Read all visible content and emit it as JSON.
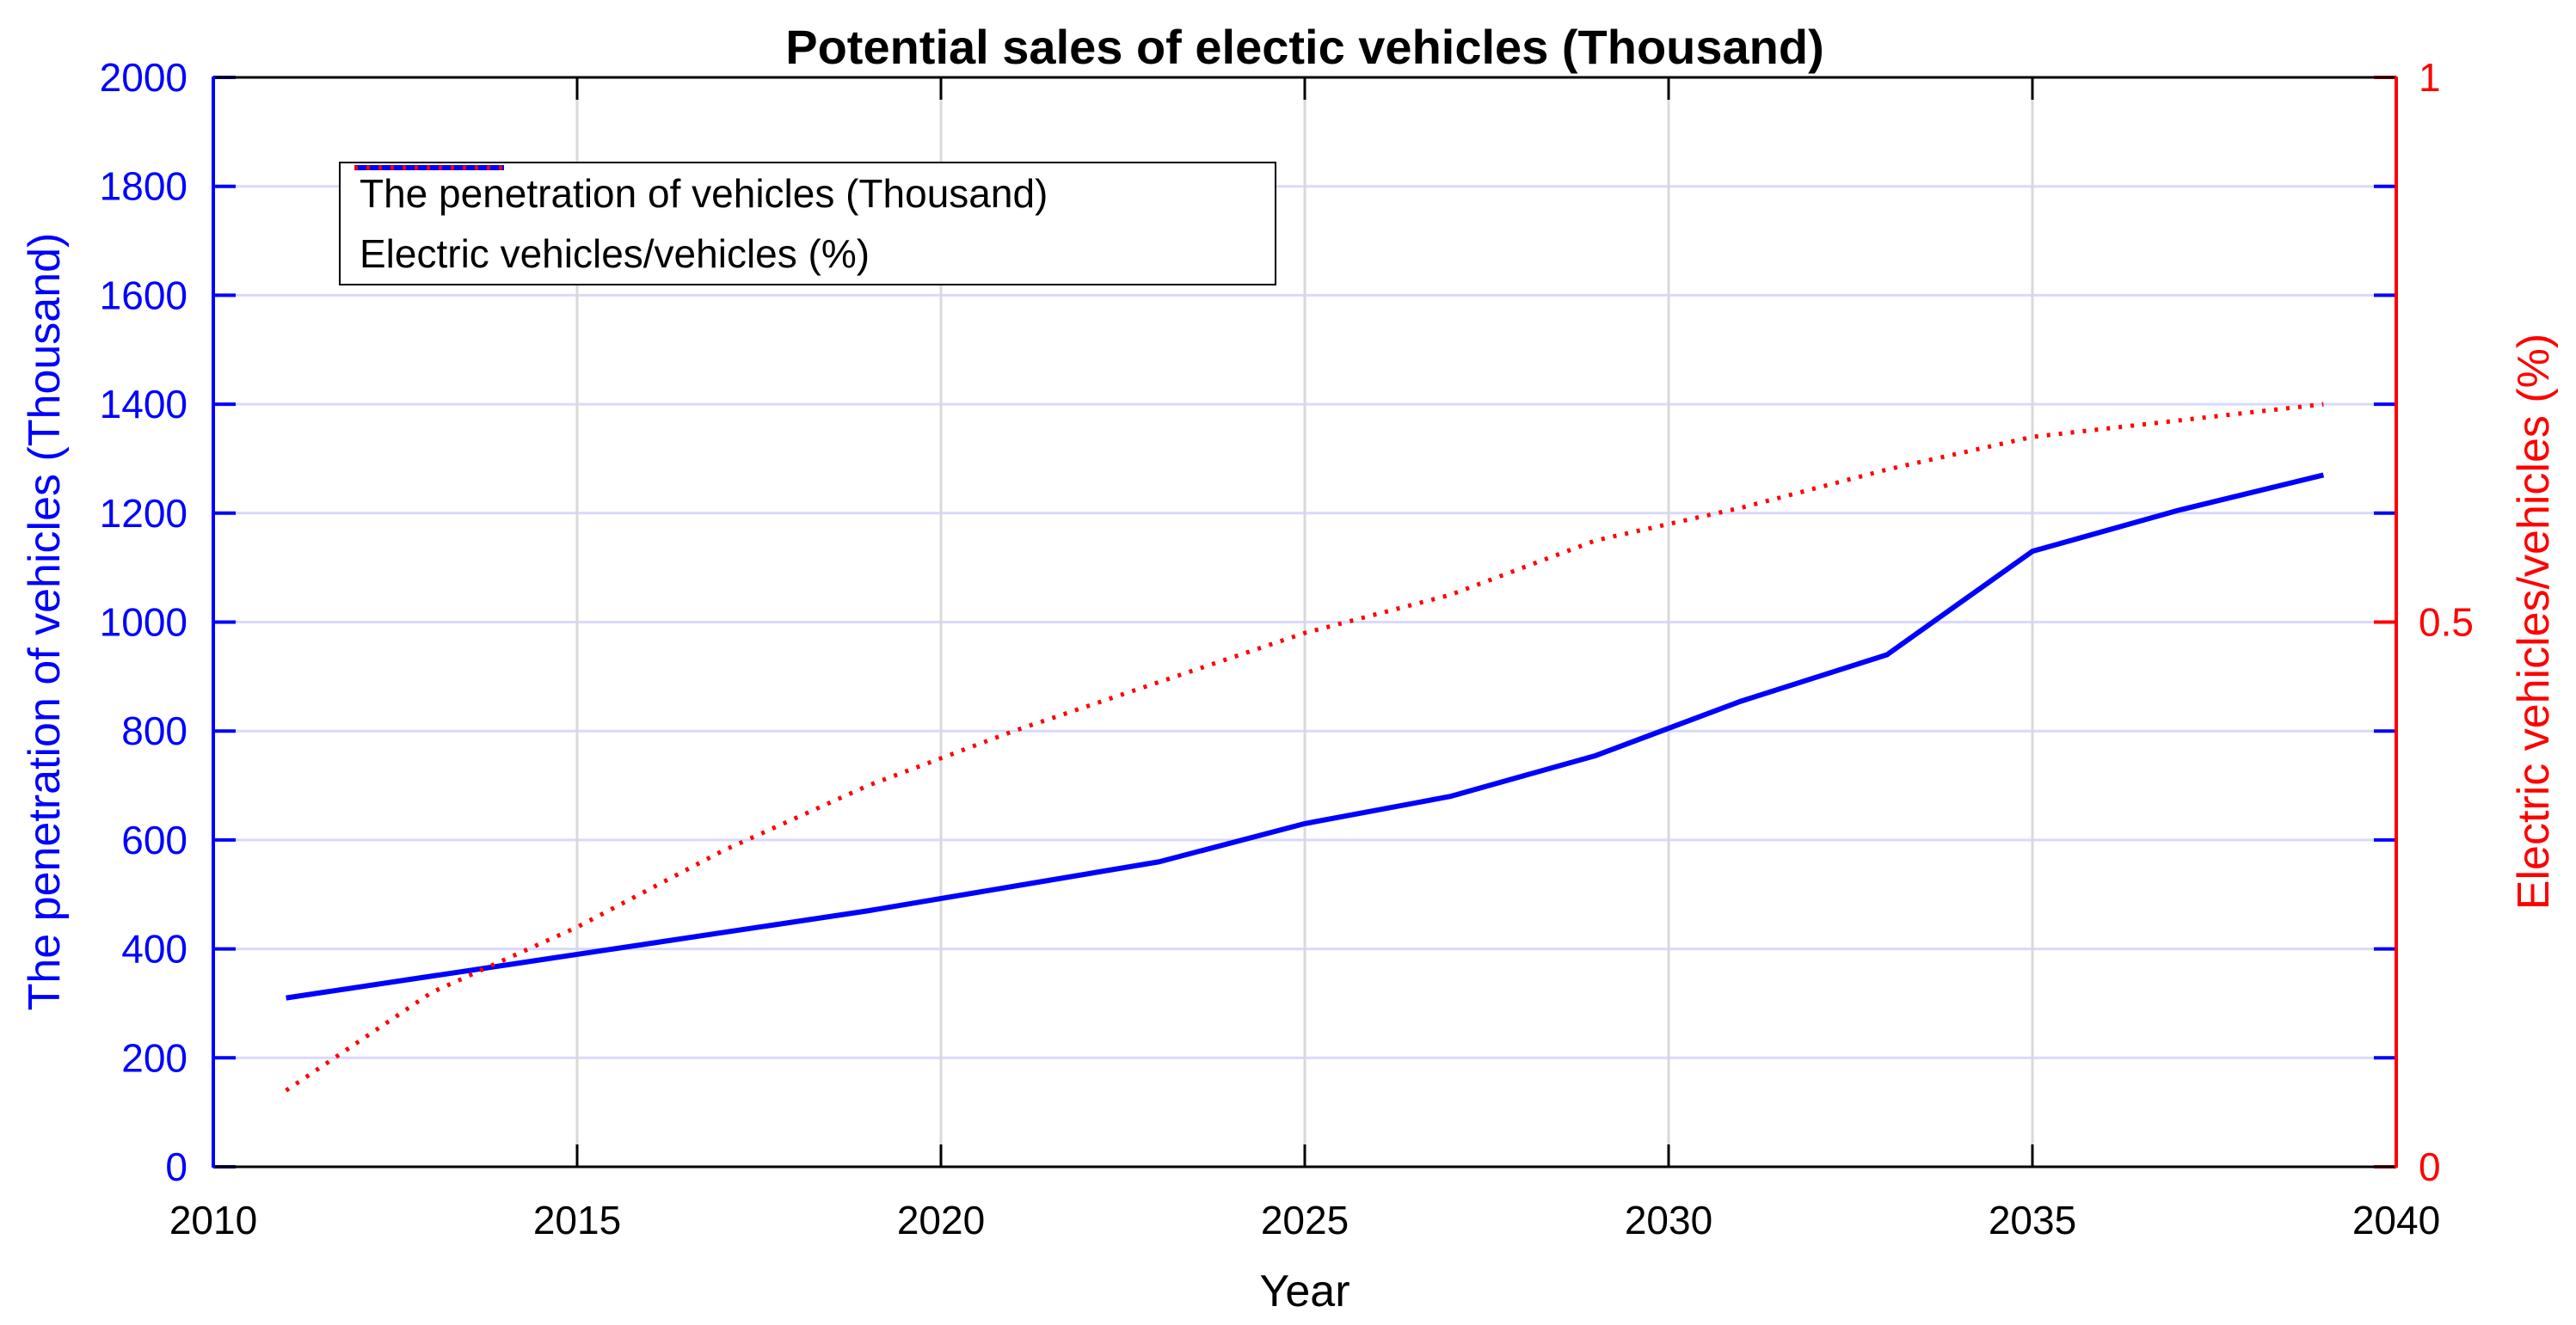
{
  "figure_title": "Potential sales of electic vehicles (Thousand)",
  "chart_data": {
    "type": "line",
    "title": "Potential sales of electic vehicles (Thousand)",
    "xlabel": "Year",
    "xlim": [
      2010,
      2040
    ],
    "xticks": [
      2010,
      2015,
      2020,
      2025,
      2030,
      2035,
      2040
    ],
    "x_gridlines": [
      2015,
      2020,
      2025,
      2030,
      2035
    ],
    "x": [
      2011,
      2013,
      2015,
      2017,
      2019,
      2021,
      2023,
      2025,
      2027,
      2029,
      2031,
      2033,
      2035,
      2037,
      2039
    ],
    "series": [
      {
        "name": "The penetration of vehicles (Thousand)",
        "axis": "left",
        "color": "#0000ff",
        "style": "solid",
        "values": [
          310,
          350,
          390,
          430,
          470,
          515,
          560,
          630,
          680,
          755,
          855,
          940,
          1130,
          1205,
          1270
        ]
      },
      {
        "name": "Electric vehicles/vehicles (%)",
        "axis": "right",
        "color": "#ff0000",
        "style": "dotted",
        "values": [
          0.07,
          0.16,
          0.22,
          0.29,
          0.35,
          0.4,
          0.445,
          0.49,
          0.525,
          0.575,
          0.605,
          0.64,
          0.67,
          0.685,
          0.7
        ]
      }
    ],
    "left_axis": {
      "label": "The penetration of vehicles (Thousand)",
      "color": "#0000ff",
      "min": 0,
      "max": 2000,
      "ticks": [
        0,
        200,
        400,
        600,
        800,
        1000,
        1200,
        1400,
        1600,
        1800,
        2000
      ]
    },
    "right_axis": {
      "label": "Electric vehicles/vehicles (%)",
      "color": "#ff0000",
      "min": 0,
      "max": 1,
      "ticks": [
        0,
        0.5,
        1
      ],
      "tick_labels": [
        "0",
        "0.5",
        "1"
      ]
    },
    "grid": true,
    "grid_color_horizontal": "#d9d9ff",
    "grid_color_vertical": "#d9d9d9",
    "axis_box_color": "#000000",
    "legend_position": "top-left"
  }
}
